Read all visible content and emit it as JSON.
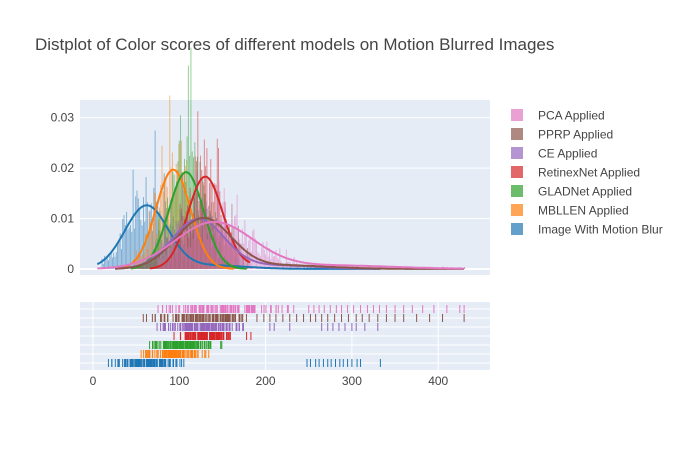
{
  "chart_data": {
    "type": "distplot",
    "title": "Distplot of Color scores of different models on Motion Blurred Images",
    "x_ticks": [
      0,
      100,
      200,
      300,
      400
    ],
    "y_ticks": [
      0,
      0.01,
      0.02,
      0.03
    ],
    "y_tick_labels": [
      "0",
      "0.01",
      "0.02",
      "0.03"
    ],
    "xlim": [
      -15,
      460
    ],
    "ylim": [
      -0.0012,
      0.0335
    ],
    "grid": true,
    "legend_position": "right",
    "series": [
      {
        "name": "Image With Motion Blur",
        "color": "#1f77b4",
        "mean": 62,
        "std": 25,
        "peak": 0.0125,
        "min": 10,
        "max": 120,
        "outliers": [
          248,
          252,
          258,
          262,
          267,
          272,
          276,
          281,
          286,
          290,
          295,
          300,
          306,
          310,
          333
        ]
      },
      {
        "name": "MBLLEN Applied",
        "color": "#ff7f0e",
        "mean": 93,
        "std": 20,
        "peak": 0.0197,
        "min": 48,
        "max": 137,
        "outliers": []
      },
      {
        "name": "GLADNet Applied",
        "color": "#2ca02c",
        "mean": 108,
        "std": 20,
        "peak": 0.0192,
        "min": 20,
        "max": 163,
        "outliers": []
      },
      {
        "name": "RetinexNet Applied",
        "color": "#d62728",
        "mean": 130,
        "std": 20,
        "peak": 0.0182,
        "min": 55,
        "max": 168,
        "outliers": [
          178,
          183
        ]
      },
      {
        "name": "CE Applied",
        "color": "#9467bd",
        "mean": 122,
        "std": 30,
        "peak": 0.0098,
        "min": 45,
        "max": 175,
        "outliers": [
          205,
          210,
          228,
          265,
          272,
          278,
          285,
          292,
          300,
          305,
          315,
          330
        ]
      },
      {
        "name": "PPRP Applied",
        "color": "#8c564b",
        "mean": 128,
        "std": 32,
        "peak": 0.01,
        "min": 30,
        "max": 182,
        "outliers": [
          190,
          198,
          205,
          212,
          220,
          228,
          236,
          244,
          252,
          258,
          265,
          272,
          280,
          288,
          296,
          305,
          312,
          320,
          330,
          340,
          350,
          360,
          375,
          390,
          405,
          430
        ]
      },
      {
        "name": "PCA Applied",
        "color": "#e377c2",
        "mean": 140,
        "std": 45,
        "peak": 0.0092,
        "min": 75,
        "max": 240,
        "outliers": [
          250,
          256,
          262,
          268,
          275,
          282,
          288,
          295,
          302,
          310,
          318,
          325,
          332,
          340,
          350,
          360,
          370,
          382,
          395,
          410,
          425,
          430
        ]
      }
    ]
  }
}
